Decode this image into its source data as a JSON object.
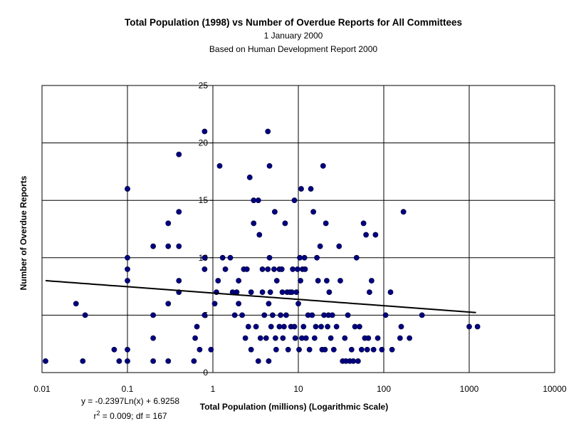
{
  "chart_data": {
    "type": "scatter",
    "title": "Total Population (1998) vs Number of Overdue Reports for All Committees",
    "subtitle": [
      "1 January 2000",
      "Based on Human Development Report 2000"
    ],
    "xlabel": "Total Population (millions) (Logarithmic Scale)",
    "ylabel": "Number of Overdue Reports",
    "xscale": "log",
    "xlim": [
      0.01,
      10000
    ],
    "ylim": [
      0,
      25
    ],
    "x_ticks": [
      0.01,
      0.1,
      1,
      10,
      100,
      1000,
      10000
    ],
    "x_tick_labels": [
      "0.01",
      "0.1",
      "1",
      "10",
      "100",
      "1000",
      "10000"
    ],
    "y_ticks": [
      0,
      5,
      10,
      15,
      20,
      25
    ],
    "y_tick_labels": [
      "0",
      "5",
      "10",
      "15",
      "20",
      "25"
    ],
    "grid": true,
    "marker_color": "#000080",
    "trendline": {
      "type": "logarithmic",
      "x_range": [
        0.011,
        1200
      ],
      "slope": -0.2397,
      "intercept": 6.9258,
      "color": "#000000",
      "equation_label": "y = -0.2397Ln(x) + 6.9258",
      "stats_label_main": "r",
      "stats_label_sup": "2",
      "stats_label_rest": " = 0.009; df = 167"
    },
    "points": [
      [
        0.011,
        1
      ],
      [
        0.025,
        6
      ],
      [
        0.03,
        1
      ],
      [
        0.032,
        5
      ],
      [
        0.07,
        2
      ],
      [
        0.08,
        1
      ],
      [
        0.1,
        1
      ],
      [
        0.1,
        2
      ],
      [
        0.1,
        8
      ],
      [
        0.1,
        9
      ],
      [
        0.1,
        10
      ],
      [
        0.1,
        16
      ],
      [
        0.1,
        16
      ],
      [
        0.2,
        1
      ],
      [
        0.2,
        3
      ],
      [
        0.2,
        5
      ],
      [
        0.2,
        11
      ],
      [
        0.3,
        1
      ],
      [
        0.3,
        6
      ],
      [
        0.3,
        11
      ],
      [
        0.3,
        13
      ],
      [
        0.4,
        7
      ],
      [
        0.4,
        8
      ],
      [
        0.4,
        11
      ],
      [
        0.4,
        14
      ],
      [
        0.4,
        19
      ],
      [
        0.6,
        1
      ],
      [
        0.62,
        3
      ],
      [
        0.65,
        4
      ],
      [
        0.7,
        2
      ],
      [
        0.8,
        5
      ],
      [
        0.8,
        9
      ],
      [
        0.8,
        10
      ],
      [
        0.8,
        21
      ],
      [
        0.95,
        2
      ],
      [
        1.05,
        6
      ],
      [
        1.1,
        7
      ],
      [
        1.15,
        8
      ],
      [
        1.2,
        18
      ],
      [
        1.3,
        10
      ],
      [
        1.4,
        9
      ],
      [
        1.6,
        10
      ],
      [
        1.7,
        7
      ],
      [
        1.8,
        5
      ],
      [
        1.9,
        7
      ],
      [
        2.0,
        6
      ],
      [
        2.0,
        8
      ],
      [
        2.2,
        5
      ],
      [
        2.3,
        9
      ],
      [
        2.4,
        3
      ],
      [
        2.5,
        9
      ],
      [
        2.6,
        4
      ],
      [
        2.7,
        17
      ],
      [
        2.8,
        7
      ],
      [
        2.8,
        2
      ],
      [
        3.0,
        15
      ],
      [
        3.0,
        13
      ],
      [
        3.2,
        4
      ],
      [
        3.4,
        1
      ],
      [
        3.4,
        15
      ],
      [
        3.5,
        12
      ],
      [
        3.6,
        3
      ],
      [
        3.8,
        9
      ],
      [
        3.8,
        7
      ],
      [
        4.0,
        5
      ],
      [
        4.2,
        3
      ],
      [
        4.4,
        9
      ],
      [
        4.4,
        21
      ],
      [
        4.5,
        1
      ],
      [
        4.5,
        6
      ],
      [
        4.6,
        18
      ],
      [
        4.6,
        10
      ],
      [
        4.7,
        7
      ],
      [
        4.8,
        4
      ],
      [
        5.0,
        5
      ],
      [
        5.2,
        9
      ],
      [
        5.3,
        14
      ],
      [
        5.4,
        3
      ],
      [
        5.5,
        2
      ],
      [
        5.6,
        8
      ],
      [
        6.0,
        4
      ],
      [
        6.0,
        9
      ],
      [
        6.2,
        5
      ],
      [
        6.4,
        9
      ],
      [
        6.5,
        7
      ],
      [
        6.6,
        3
      ],
      [
        6.8,
        4
      ],
      [
        7.0,
        13
      ],
      [
        7.2,
        5
      ],
      [
        7.4,
        7
      ],
      [
        7.6,
        2
      ],
      [
        8.0,
        7
      ],
      [
        8.2,
        4
      ],
      [
        8.4,
        7
      ],
      [
        8.6,
        9
      ],
      [
        9.0,
        15
      ],
      [
        9.0,
        4
      ],
      [
        9.2,
        3
      ],
      [
        9.5,
        7
      ],
      [
        9.8,
        9
      ],
      [
        10.0,
        6
      ],
      [
        10.2,
        2
      ],
      [
        10.4,
        10
      ],
      [
        10.6,
        8
      ],
      [
        10.8,
        16
      ],
      [
        11.0,
        3
      ],
      [
        11.2,
        9
      ],
      [
        11.5,
        4
      ],
      [
        11.8,
        10
      ],
      [
        12.0,
        9
      ],
      [
        12.3,
        3
      ],
      [
        13.0,
        5
      ],
      [
        13.5,
        2
      ],
      [
        14.0,
        16
      ],
      [
        14.5,
        5
      ],
      [
        15.0,
        14
      ],
      [
        15.5,
        3
      ],
      [
        16.0,
        4
      ],
      [
        16.5,
        10
      ],
      [
        17.0,
        8
      ],
      [
        18.0,
        11
      ],
      [
        18.5,
        4
      ],
      [
        19.0,
        2
      ],
      [
        19.5,
        18
      ],
      [
        20.0,
        5
      ],
      [
        20.5,
        2
      ],
      [
        21.0,
        13
      ],
      [
        21.5,
        8
      ],
      [
        22.0,
        4
      ],
      [
        22.5,
        5
      ],
      [
        23.0,
        7
      ],
      [
        24.0,
        3
      ],
      [
        25.0,
        5
      ],
      [
        26.0,
        2
      ],
      [
        28.0,
        4
      ],
      [
        30.0,
        11
      ],
      [
        31.0,
        8
      ],
      [
        33.0,
        1
      ],
      [
        35.0,
        3
      ],
      [
        36.0,
        1
      ],
      [
        38.0,
        5
      ],
      [
        40.0,
        1
      ],
      [
        42.0,
        2
      ],
      [
        44.0,
        1
      ],
      [
        46.0,
        4
      ],
      [
        48.0,
        10
      ],
      [
        50.0,
        1
      ],
      [
        52.0,
        4
      ],
      [
        55.0,
        2
      ],
      [
        58.0,
        13
      ],
      [
        60.0,
        3
      ],
      [
        62.0,
        12
      ],
      [
        64.0,
        2
      ],
      [
        66.0,
        3
      ],
      [
        68.0,
        7
      ],
      [
        72.0,
        8
      ],
      [
        76.0,
        2
      ],
      [
        80.0,
        12
      ],
      [
        85.0,
        3
      ],
      [
        95.0,
        2
      ],
      [
        105.0,
        5
      ],
      [
        120.0,
        7
      ],
      [
        125.0,
        2
      ],
      [
        155.0,
        3
      ],
      [
        160.0,
        4
      ],
      [
        170.0,
        14
      ],
      [
        200.0,
        3
      ],
      [
        280.0,
        5
      ],
      [
        1000.0,
        4
      ],
      [
        1250.0,
        4
      ]
    ]
  }
}
